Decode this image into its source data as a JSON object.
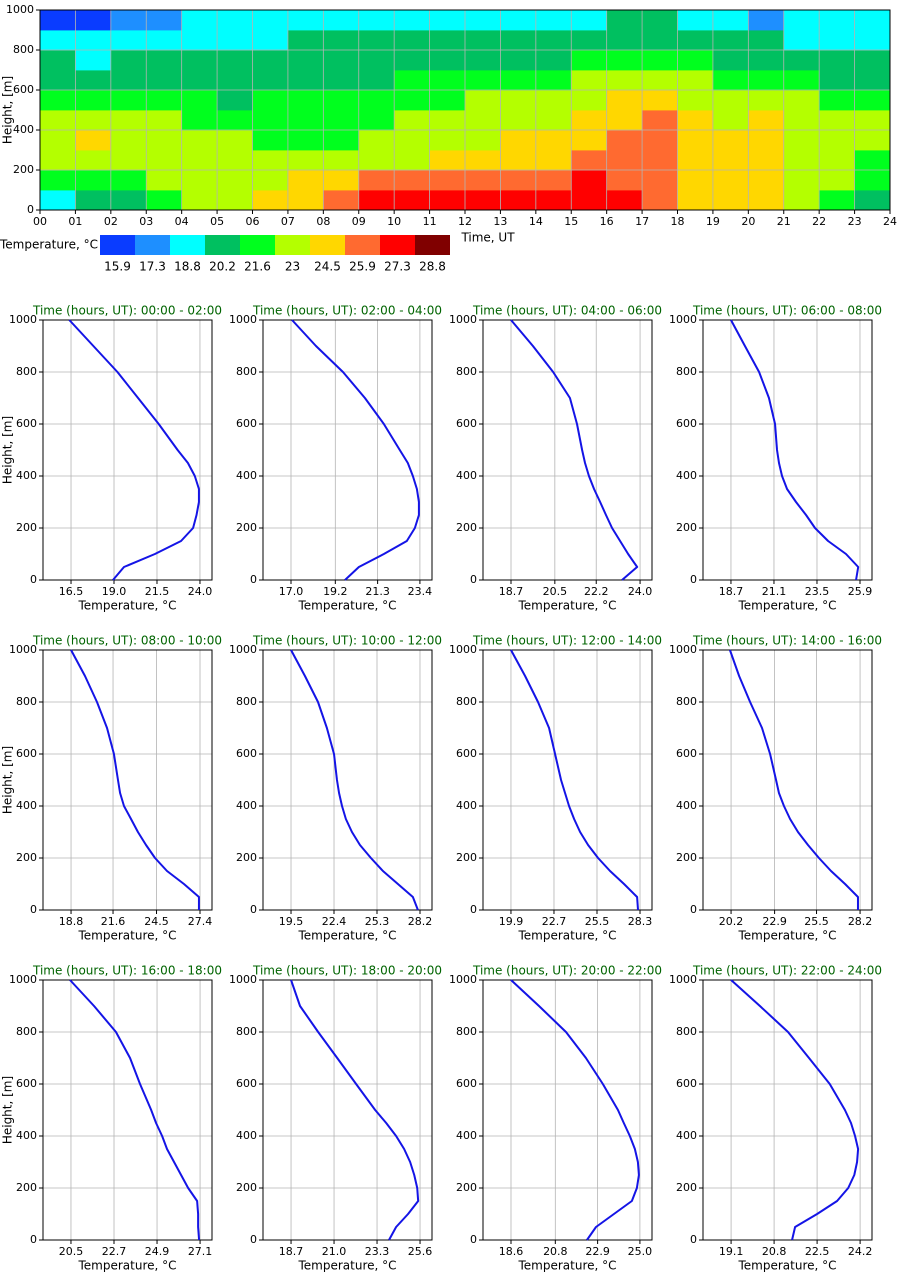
{
  "chart_data": [
    {
      "type": "heatmap",
      "xlabel": "Time, UT",
      "ylabel": "Height, [m]",
      "xlim": [
        0,
        24
      ],
      "ylim": [
        0,
        1000
      ],
      "xticks": [
        {
          "value": 0,
          "label": "00"
        },
        {
          "value": 1,
          "label": "01"
        },
        {
          "value": 2,
          "label": "02"
        },
        {
          "value": 3,
          "label": "03"
        },
        {
          "value": 4,
          "label": "04"
        },
        {
          "value": 5,
          "label": "05"
        },
        {
          "value": 6,
          "label": "06"
        },
        {
          "value": 7,
          "label": "07"
        },
        {
          "value": 8,
          "label": "08"
        },
        {
          "value": 9,
          "label": "09"
        },
        10,
        11,
        12,
        13,
        14,
        15,
        16,
        17,
        18,
        19,
        20,
        21,
        22,
        23,
        24
      ],
      "yticks": [
        0,
        200,
        400,
        600,
        800,
        1000
      ],
      "grid": true,
      "x_bins": [
        0,
        1,
        2,
        3,
        4,
        5,
        6,
        7,
        8,
        9,
        10,
        11,
        12,
        13,
        14,
        15,
        16,
        17,
        18,
        19,
        20,
        21,
        22,
        23,
        24
      ],
      "y_bins": [
        0,
        100,
        200,
        300,
        400,
        500,
        600,
        700,
        800,
        900,
        1000
      ],
      "z": [
        [
          18.8,
          20.2,
          20.2,
          21.6,
          23.0,
          23.0,
          24.5,
          24.5,
          25.9,
          27.3,
          27.3,
          27.3,
          27.3,
          27.3,
          27.3,
          27.3,
          27.3,
          25.9,
          24.5,
          24.5,
          24.5,
          23.0,
          21.6,
          20.2
        ],
        [
          21.6,
          21.6,
          21.6,
          23.0,
          23.0,
          23.0,
          23.0,
          24.5,
          24.5,
          25.9,
          25.9,
          25.9,
          25.9,
          25.9,
          25.9,
          27.3,
          25.9,
          25.9,
          24.5,
          24.5,
          24.5,
          23.0,
          23.0,
          21.6
        ],
        [
          23.0,
          23.0,
          23.0,
          23.0,
          23.0,
          23.0,
          23.0,
          23.0,
          23.0,
          23.0,
          23.0,
          24.5,
          24.5,
          24.5,
          24.5,
          25.9,
          25.9,
          25.9,
          24.5,
          24.5,
          24.5,
          23.0,
          23.0,
          21.6
        ],
        [
          23.0,
          24.5,
          23.0,
          23.0,
          23.0,
          23.0,
          21.6,
          21.6,
          21.6,
          23.0,
          23.0,
          23.0,
          23.0,
          24.5,
          24.5,
          24.5,
          25.9,
          25.9,
          24.5,
          24.5,
          24.5,
          23.0,
          23.0,
          23.0
        ],
        [
          23.0,
          23.0,
          23.0,
          23.0,
          21.6,
          21.6,
          21.6,
          21.6,
          21.6,
          21.6,
          23.0,
          23.0,
          23.0,
          23.0,
          23.0,
          24.5,
          24.5,
          25.9,
          24.5,
          23.0,
          24.5,
          23.0,
          23.0,
          23.0
        ],
        [
          21.6,
          21.6,
          21.6,
          21.6,
          21.6,
          20.2,
          21.6,
          21.6,
          21.6,
          21.6,
          21.6,
          21.6,
          23.0,
          23.0,
          23.0,
          23.0,
          24.5,
          24.5,
          23.0,
          23.0,
          23.0,
          23.0,
          21.6,
          21.6
        ],
        [
          20.2,
          20.2,
          20.2,
          20.2,
          20.2,
          20.2,
          20.2,
          20.2,
          20.2,
          20.2,
          21.6,
          21.6,
          21.6,
          21.6,
          21.6,
          23.0,
          23.0,
          23.0,
          23.0,
          21.6,
          21.6,
          21.6,
          20.2,
          20.2
        ],
        [
          20.2,
          18.8,
          20.2,
          20.2,
          20.2,
          20.2,
          20.2,
          20.2,
          20.2,
          20.2,
          20.2,
          20.2,
          20.2,
          20.2,
          20.2,
          21.6,
          21.6,
          21.6,
          21.6,
          20.2,
          20.2,
          20.2,
          20.2,
          20.2
        ],
        [
          18.8,
          18.8,
          18.8,
          18.8,
          18.8,
          18.8,
          18.8,
          20.2,
          20.2,
          20.2,
          20.2,
          20.2,
          20.2,
          20.2,
          20.2,
          20.2,
          20.2,
          20.2,
          20.2,
          20.2,
          20.2,
          18.8,
          18.8,
          18.8
        ],
        [
          15.9,
          15.9,
          17.3,
          17.3,
          18.8,
          18.8,
          18.8,
          18.8,
          18.8,
          18.8,
          18.8,
          18.8,
          18.8,
          18.8,
          18.8,
          18.8,
          20.2,
          20.2,
          18.8,
          18.8,
          17.3,
          18.8,
          18.8,
          18.8
        ]
      ],
      "colorbar": {
        "label": "Temperature, °C",
        "levels": [
          15.9,
          17.3,
          18.8,
          20.2,
          21.6,
          23.0,
          24.5,
          25.9,
          27.3,
          28.8
        ],
        "colors": [
          "#0a3cff",
          "#1e8fff",
          "#00ffff",
          "#00c060",
          "#00ff1e",
          "#b4ff00",
          "#ffd700",
          "#ff6a30",
          "#ff0000",
          "#800000"
        ]
      }
    },
    {
      "type": "line",
      "title": "Time (hours, UT): 00:00 - 02:00",
      "xlabel": "Temperature, °C",
      "ylabel": "Height, [m]",
      "color": "#1414e6",
      "xlim": [
        14.87,
        24.7
      ],
      "xticks": [
        16.5,
        {
          "value": 19,
          "label": "19.0"
        },
        21.5,
        {
          "value": 24,
          "label": "24.0"
        }
      ],
      "ylim": [
        0,
        1000
      ],
      "yticks": [
        0,
        200,
        400,
        600,
        800,
        1000
      ],
      "grid": true,
      "y": [
        0,
        50,
        100,
        150,
        200,
        250,
        300,
        350,
        400,
        450,
        500,
        600,
        700,
        800,
        900,
        1000
      ],
      "values": [
        18.94,
        19.58,
        21.38,
        22.9,
        23.6,
        23.8,
        23.94,
        23.94,
        23.7,
        23.3,
        22.7,
        21.6,
        20.4,
        19.2,
        17.8,
        16.4
      ]
    },
    {
      "type": "line",
      "title": "Time (hours, UT): 02:00 - 04:00",
      "xlabel": "Temperature, °C",
      "color": "#1414e6",
      "xlim": [
        15.61,
        24.0
      ],
      "xticks": [
        {
          "value": 17,
          "label": "17.0"
        },
        19.2,
        21.3,
        23.4
      ],
      "ylim": [
        0,
        1000
      ],
      "yticks": [
        0,
        200,
        400,
        600,
        800,
        1000
      ],
      "grid": true,
      "y": [
        0,
        50,
        100,
        150,
        200,
        250,
        300,
        350,
        400,
        450,
        500,
        600,
        700,
        800,
        900,
        1000
      ],
      "values": [
        19.68,
        20.37,
        21.61,
        22.75,
        23.15,
        23.35,
        23.35,
        23.25,
        23.05,
        22.8,
        22.4,
        21.61,
        20.67,
        19.58,
        18.24,
        17.05
      ]
    },
    {
      "type": "line",
      "title": "Time (hours, UT): 04:00 - 06:00",
      "xlabel": "Temperature, °C",
      "color": "#1414e6",
      "xlim": [
        17.55,
        24.49
      ],
      "xticks": [
        18.7,
        20.5,
        22.2,
        {
          "value": 24,
          "label": "24.0"
        }
      ],
      "ylim": [
        0,
        1000
      ],
      "yticks": [
        0,
        200,
        400,
        600,
        800,
        1000
      ],
      "grid": true,
      "y": [
        0,
        50,
        100,
        150,
        200,
        250,
        300,
        350,
        400,
        450,
        500,
        600,
        700,
        800,
        900,
        1000
      ],
      "values": [
        23.26,
        23.88,
        23.51,
        23.18,
        22.85,
        22.6,
        22.36,
        22.11,
        21.9,
        21.74,
        21.62,
        21.41,
        21.12,
        20.43,
        19.6,
        18.7
      ]
    },
    {
      "type": "line",
      "title": "Time (hours, UT): 06:00 - 08:00",
      "xlabel": "Temperature, °C",
      "color": "#1414e6",
      "xlim": [
        17.14,
        26.57
      ],
      "xticks": [
        18.7,
        21.1,
        23.5,
        25.9
      ],
      "ylim": [
        0,
        1000
      ],
      "yticks": [
        0,
        200,
        400,
        600,
        800,
        1000
      ],
      "grid": true,
      "y": [
        0,
        50,
        100,
        150,
        200,
        250,
        300,
        350,
        400,
        450,
        500,
        600,
        700,
        800,
        900,
        1000
      ],
      "values": [
        25.68,
        25.8,
        25.12,
        24.12,
        23.39,
        22.89,
        22.33,
        21.83,
        21.55,
        21.38,
        21.27,
        21.16,
        20.82,
        20.27,
        19.48,
        18.7
      ]
    },
    {
      "type": "line",
      "title": "Time (hours, UT): 08:00 - 10:00",
      "xlabel": "Temperature, °C",
      "ylabel": "Height, [m]",
      "color": "#1414e6",
      "xlim": [
        16.93,
        28.2
      ],
      "xticks": [
        18.8,
        21.6,
        24.5,
        27.4
      ],
      "ylim": [
        0,
        1000
      ],
      "yticks": [
        0,
        200,
        400,
        600,
        800,
        1000
      ],
      "grid": true,
      "y": [
        0,
        50,
        100,
        150,
        200,
        250,
        300,
        350,
        400,
        450,
        500,
        600,
        700,
        800,
        900,
        1000
      ],
      "values": [
        27.33,
        27.33,
        26.33,
        25.2,
        24.4,
        23.8,
        23.26,
        22.8,
        22.33,
        22.07,
        21.93,
        21.66,
        21.2,
        20.53,
        19.73,
        18.8
      ]
    },
    {
      "type": "line",
      "title": "Time (hours, UT): 10:00 - 12:00",
      "xlabel": "Temperature, °C",
      "color": "#1414e6",
      "xlim": [
        17.61,
        29.01
      ],
      "xticks": [
        19.5,
        22.4,
        25.3,
        28.2
      ],
      "ylim": [
        0,
        1000
      ],
      "yticks": [
        0,
        200,
        400,
        600,
        800,
        1000
      ],
      "grid": true,
      "y": [
        0,
        50,
        100,
        150,
        200,
        250,
        300,
        350,
        400,
        450,
        500,
        600,
        700,
        800,
        900,
        1000
      ],
      "values": [
        28.06,
        27.72,
        26.71,
        25.7,
        24.89,
        24.15,
        23.61,
        23.2,
        22.94,
        22.74,
        22.6,
        22.4,
        21.92,
        21.32,
        20.44,
        19.5
      ]
    },
    {
      "type": "line",
      "title": "Time (hours, UT): 12:00 - 14:00",
      "xlabel": "Temperature, °C",
      "color": "#1414e6",
      "xlim": [
        18.08,
        29.08
      ],
      "xticks": [
        19.9,
        22.7,
        25.5,
        28.3
      ],
      "ylim": [
        0,
        1000
      ],
      "yticks": [
        0,
        200,
        400,
        600,
        800,
        1000
      ],
      "grid": true,
      "y": [
        0,
        50,
        100,
        150,
        200,
        250,
        300,
        350,
        400,
        450,
        500,
        600,
        700,
        800,
        900,
        1000
      ],
      "values": [
        28.17,
        28.11,
        27.26,
        26.35,
        25.57,
        24.92,
        24.4,
        24.01,
        23.68,
        23.42,
        23.16,
        22.77,
        22.38,
        21.66,
        20.82,
        19.9
      ]
    },
    {
      "type": "line",
      "title": "Time (hours, UT): 14:00 - 16:00",
      "xlabel": "Temperature, °C",
      "color": "#1414e6",
      "xlim": [
        18.46,
        28.94
      ],
      "xticks": [
        20.2,
        22.9,
        25.5,
        28.2
      ],
      "ylim": [
        0,
        1000
      ],
      "yticks": [
        0,
        200,
        400,
        600,
        800,
        1000
      ],
      "grid": true,
      "y": [
        0,
        50,
        100,
        150,
        200,
        250,
        300,
        350,
        400,
        450,
        500,
        600,
        700,
        800,
        900,
        1000
      ],
      "values": [
        28.07,
        28.07,
        27.27,
        26.4,
        25.65,
        24.97,
        24.35,
        23.86,
        23.48,
        23.17,
        22.99,
        22.62,
        22.12,
        21.38,
        20.7,
        20.13
      ]
    },
    {
      "type": "line",
      "title": "Time (hours, UT): 16:00 - 18:00",
      "xlabel": "Temperature, °C",
      "ylabel": "Height, [m]",
      "color": "#1414e6",
      "xlim": [
        19.07,
        27.71
      ],
      "xticks": [
        20.5,
        22.7,
        24.9,
        27.1
      ],
      "ylim": [
        0,
        1000
      ],
      "yticks": [
        0,
        200,
        400,
        600,
        800,
        1000
      ],
      "grid": true,
      "y": [
        0,
        50,
        100,
        150,
        200,
        250,
        300,
        350,
        400,
        450,
        500,
        600,
        700,
        800,
        900,
        1000
      ],
      "values": [
        27.05,
        27.0,
        27.0,
        26.95,
        26.49,
        26.13,
        25.77,
        25.41,
        25.16,
        24.85,
        24.6,
        24.03,
        23.52,
        22.8,
        21.68,
        20.45
      ]
    },
    {
      "type": "line",
      "title": "Time (hours, UT): 18:00 - 20:00",
      "xlabel": "Temperature, °C",
      "color": "#1414e6",
      "xlim": [
        17.2,
        26.24
      ],
      "xticks": [
        18.7,
        {
          "value": 21,
          "label": "21.0"
        },
        23.3,
        25.6
      ],
      "ylim": [
        0,
        1000
      ],
      "yticks": [
        0,
        200,
        400,
        600,
        800,
        1000
      ],
      "grid": true,
      "y": [
        0,
        50,
        100,
        150,
        200,
        250,
        300,
        350,
        400,
        450,
        500,
        600,
        700,
        800,
        900,
        1000
      ],
      "values": [
        23.94,
        24.32,
        24.96,
        25.5,
        25.45,
        25.29,
        25.07,
        24.75,
        24.32,
        23.79,
        23.2,
        22.18,
        21.17,
        20.15,
        19.18,
        18.7
      ]
    },
    {
      "type": "line",
      "title": "Time (hours, UT): 20:00 - 22:00",
      "xlabel": "Temperature, °C",
      "color": "#1414e6",
      "xlim": [
        17.21,
        25.6
      ],
      "xticks": [
        18.6,
        20.8,
        22.9,
        {
          "value": 25,
          "label": "25.0"
        }
      ],
      "ylim": [
        0,
        1000
      ],
      "yticks": [
        0,
        200,
        400,
        600,
        800,
        1000
      ],
      "grid": true,
      "y": [
        0,
        50,
        100,
        150,
        200,
        250,
        300,
        350,
        400,
        450,
        500,
        600,
        700,
        800,
        900,
        1000
      ],
      "values": [
        22.37,
        22.82,
        23.71,
        24.6,
        24.85,
        24.95,
        24.9,
        24.75,
        24.5,
        24.2,
        23.91,
        23.16,
        22.32,
        21.33,
        19.99,
        18.6
      ]
    },
    {
      "type": "line",
      "title": "Time (hours, UT): 22:00 - 24:00",
      "xlabel": "Temperature, °C",
      "color": "#1414e6",
      "xlim": [
        17.99,
        24.67
      ],
      "xticks": [
        19.1,
        20.8,
        22.5,
        24.2
      ],
      "ylim": [
        0,
        1000
      ],
      "yticks": [
        0,
        200,
        400,
        600,
        800,
        1000
      ],
      "grid": true,
      "y": [
        0,
        50,
        100,
        150,
        200,
        250,
        300,
        350,
        400,
        450,
        500,
        600,
        700,
        800,
        900,
        1000
      ],
      "values": [
        21.51,
        21.63,
        22.5,
        23.29,
        23.73,
        23.97,
        24.08,
        24.12,
        24.0,
        23.84,
        23.6,
        23.0,
        22.18,
        21.35,
        20.24,
        19.1
      ]
    }
  ]
}
